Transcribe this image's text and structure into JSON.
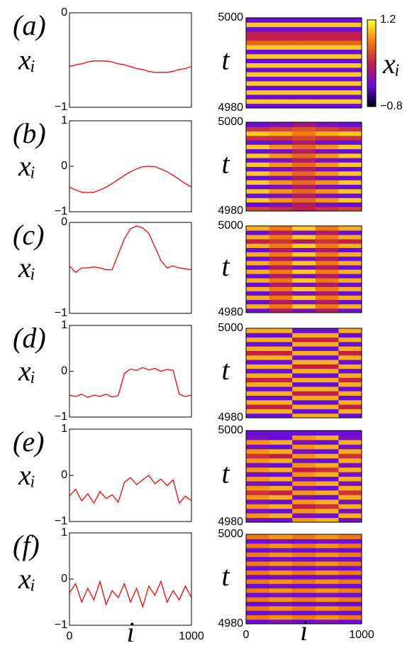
{
  "chart_data": [
    {
      "type": "line",
      "panel_label": "(a)",
      "ylabel": "xᵢ",
      "color": "#ff0000",
      "xlim": [
        0,
        1000
      ],
      "ylim": [
        -1,
        0
      ],
      "yticks": [
        {
          "value": -1,
          "label": "−1"
        },
        0
      ],
      "x": [
        0,
        50,
        100,
        150,
        200,
        250,
        300,
        350,
        400,
        450,
        500,
        550,
        600,
        650,
        700,
        750,
        800,
        850,
        900,
        950,
        1000
      ],
      "values": [
        -0.57,
        -0.55,
        -0.54,
        -0.52,
        -0.51,
        -0.51,
        -0.51,
        -0.52,
        -0.54,
        -0.55,
        -0.57,
        -0.59,
        -0.6,
        -0.62,
        -0.63,
        -0.63,
        -0.63,
        -0.62,
        -0.6,
        -0.59,
        -0.57
      ]
    },
    {
      "type": "line",
      "panel_label": "(b)",
      "ylabel": "xᵢ",
      "color": "#ff0000",
      "xlim": [
        0,
        1000
      ],
      "ylim": [
        -1,
        1
      ],
      "yticks": [
        {
          "value": -1,
          "label": "−1"
        },
        0,
        1
      ],
      "x": [
        0,
        50,
        100,
        150,
        200,
        250,
        300,
        350,
        400,
        450,
        500,
        550,
        600,
        650,
        700,
        750,
        800,
        850,
        900,
        950,
        1000
      ],
      "values": [
        -0.46,
        -0.52,
        -0.57,
        -0.58,
        -0.57,
        -0.52,
        -0.46,
        -0.38,
        -0.29,
        -0.2,
        -0.12,
        -0.06,
        -0.01,
        0,
        -0.01,
        -0.06,
        -0.12,
        -0.2,
        -0.29,
        -0.38,
        -0.46
      ]
    },
    {
      "type": "line",
      "panel_label": "(c)",
      "ylabel": "xᵢ",
      "color": "#ff0000",
      "xlim": [
        0,
        1000
      ],
      "ylim": [
        -1,
        0
      ],
      "yticks": [
        {
          "value": -1,
          "label": "−1"
        },
        0
      ],
      "x": [
        0,
        50,
        100,
        150,
        200,
        250,
        300,
        350,
        400,
        450,
        500,
        550,
        600,
        650,
        700,
        750,
        800,
        850,
        900,
        950,
        1000
      ],
      "values": [
        -0.48,
        -0.55,
        -0.5,
        -0.5,
        -0.49,
        -0.5,
        -0.52,
        -0.52,
        -0.35,
        -0.18,
        -0.07,
        -0.04,
        -0.06,
        -0.12,
        -0.27,
        -0.42,
        -0.5,
        -0.48,
        -0.5,
        -0.51,
        -0.52
      ]
    },
    {
      "type": "line",
      "panel_label": "(d)",
      "ylabel": "xᵢ",
      "color": "#ff0000",
      "xlim": [
        0,
        1000
      ],
      "ylim": [
        -1,
        1
      ],
      "yticks": [
        {
          "value": -1,
          "label": "−1"
        },
        0,
        1
      ],
      "x": [
        0,
        50,
        100,
        150,
        200,
        250,
        300,
        350,
        400,
        450,
        500,
        550,
        600,
        650,
        700,
        750,
        800,
        850,
        900,
        950,
        1000
      ],
      "values": [
        -0.52,
        -0.55,
        -0.5,
        -0.57,
        -0.52,
        -0.55,
        -0.5,
        -0.56,
        -0.53,
        -0.05,
        0.05,
        0.02,
        0.08,
        0.03,
        0.06,
        0,
        0.04,
        0.02,
        -0.5,
        -0.55,
        -0.52
      ]
    },
    {
      "type": "line",
      "panel_label": "(e)",
      "ylabel": "xᵢ",
      "color": "#ff0000",
      "xlim": [
        0,
        1000
      ],
      "ylim": [
        -1,
        1
      ],
      "yticks": [
        {
          "value": -1,
          "label": "−1"
        },
        0,
        1
      ],
      "x": [
        0,
        50,
        100,
        150,
        200,
        250,
        300,
        350,
        400,
        450,
        500,
        550,
        600,
        650,
        700,
        750,
        800,
        850,
        900,
        950,
        1000
      ],
      "values": [
        -0.45,
        -0.3,
        -0.55,
        -0.4,
        -0.6,
        -0.35,
        -0.5,
        -0.42,
        -0.58,
        -0.15,
        -0.05,
        -0.2,
        -0.1,
        0,
        -0.18,
        -0.08,
        -0.22,
        -0.1,
        -0.6,
        -0.45,
        -0.55
      ]
    },
    {
      "type": "line",
      "panel_label": "(f)",
      "ylabel": "xᵢ",
      "xlabel": "i",
      "color": "#ff0000",
      "xlim": [
        0,
        1000
      ],
      "xticks": [
        0,
        1000
      ],
      "ylim": [
        -1,
        1
      ],
      "yticks": [
        {
          "value": -1,
          "label": "−1"
        },
        0,
        1
      ],
      "x": [
        0,
        50,
        100,
        150,
        200,
        250,
        300,
        350,
        400,
        450,
        500,
        550,
        600,
        650,
        700,
        750,
        800,
        850,
        900,
        950,
        1000
      ],
      "values": [
        -0.3,
        -0.1,
        -0.5,
        -0.2,
        -0.45,
        -0.05,
        -0.55,
        -0.25,
        -0.4,
        -0.1,
        -0.5,
        -0.2,
        -0.6,
        -0.15,
        -0.35,
        -0.05,
        -0.5,
        -0.25,
        -0.45,
        -0.15,
        -0.4
      ]
    },
    {
      "type": "heatmap",
      "ylabel": "t",
      "xlim": [
        0,
        1000
      ],
      "ylim": [
        4980,
        5000
      ],
      "yticks": [
        4980,
        5000
      ],
      "zlim": [
        -0.8,
        1.2
      ],
      "z": [
        [
          -0.3,
          -0.3,
          -0.3,
          -0.3,
          -0.3
        ],
        [
          1,
          1,
          1,
          1,
          1
        ],
        [
          -0.3,
          -0.3,
          -0.3,
          -0.3,
          -0.3
        ],
        [
          1,
          1,
          1,
          1,
          1
        ],
        [
          -0.3,
          -0.3,
          -0.3,
          -0.3,
          -0.3
        ],
        [
          1,
          1,
          1,
          1,
          1
        ],
        [
          -0.3,
          -0.3,
          -0.3,
          -0.3,
          -0.3
        ],
        [
          1,
          1,
          1,
          1,
          1
        ],
        [
          -0.3,
          -0.3,
          -0.3,
          -0.3,
          -0.3
        ],
        [
          1,
          1,
          1,
          1,
          1
        ],
        [
          -0.3,
          -0.3,
          -0.3,
          -0.3,
          -0.3
        ],
        [
          1,
          1,
          1,
          1,
          1
        ],
        [
          -0.3,
          -0.3,
          -0.3,
          -0.3,
          -0.3
        ],
        [
          1,
          1,
          1,
          1,
          1
        ],
        [
          0.6,
          0.6,
          0.6,
          0.6,
          0.6
        ],
        [
          0.2,
          0.2,
          0.2,
          0.2,
          0.2
        ],
        [
          0.2,
          0.2,
          0.2,
          0.2,
          0.2
        ],
        [
          -0.3,
          -0.3,
          -0.3,
          -0.3,
          -0.3
        ],
        [
          1,
          1,
          1,
          1,
          1
        ],
        [
          -0.3,
          -0.3,
          -0.3,
          -0.3,
          -0.3
        ]
      ]
    },
    {
      "type": "heatmap",
      "ylabel": "t",
      "xlim": [
        0,
        1000
      ],
      "ylim": [
        4980,
        5000
      ],
      "yticks": [
        4980,
        5000
      ],
      "zlim": [
        -0.8,
        1.2
      ],
      "z": [
        [
          0.4,
          0.3,
          0.2,
          0.3,
          0.4
        ],
        [
          -0.3,
          -0.2,
          0.1,
          -0.2,
          -0.3
        ],
        [
          1,
          0.8,
          0.6,
          0.8,
          1
        ],
        [
          -0.3,
          -0.2,
          0.1,
          -0.2,
          -0.3
        ],
        [
          1,
          0.8,
          0.6,
          0.8,
          1
        ],
        [
          -0.3,
          -0.2,
          0.1,
          -0.2,
          -0.3
        ],
        [
          1,
          0.8,
          0.6,
          0.8,
          1
        ],
        [
          -0.3,
          -0.2,
          0.1,
          -0.2,
          -0.3
        ],
        [
          1,
          0.8,
          0.6,
          0.8,
          1
        ],
        [
          -0.3,
          -0.2,
          0.1,
          -0.2,
          -0.3
        ],
        [
          1,
          0.8,
          0.6,
          0.8,
          1
        ],
        [
          -0.3,
          -0.2,
          0.1,
          -0.2,
          -0.3
        ],
        [
          1,
          0.8,
          0.6,
          0.8,
          1
        ],
        [
          -0.3,
          -0.2,
          0.1,
          -0.2,
          -0.3
        ],
        [
          1,
          0.8,
          0.6,
          0.8,
          1
        ],
        [
          -0.3,
          -0.2,
          0.1,
          -0.2,
          -0.3
        ],
        [
          0.3,
          0.3,
          0.4,
          0.3,
          0.3
        ],
        [
          1,
          0.9,
          0.7,
          0.9,
          1
        ],
        [
          0.3,
          0.4,
          0.5,
          0.4,
          0.3
        ],
        [
          -0.3,
          -0.2,
          0,
          -0.2,
          -0.3
        ]
      ]
    },
    {
      "type": "heatmap",
      "ylabel": "t",
      "xlim": [
        0,
        1000
      ],
      "ylim": [
        4980,
        5000
      ],
      "yticks": [
        4980,
        5000
      ],
      "zlim": [
        -0.8,
        1.2
      ],
      "z": [
        [
          -0.3,
          0.1,
          -0.2,
          0.1,
          -0.3
        ],
        [
          0.9,
          0.7,
          1,
          0.7,
          0.9
        ],
        [
          -0.3,
          0.1,
          -0.2,
          0.1,
          -0.3
        ],
        [
          0.9,
          0.7,
          1,
          0.7,
          0.9
        ],
        [
          -0.3,
          0.1,
          -0.2,
          0.1,
          -0.3
        ],
        [
          0.9,
          0.7,
          1,
          0.7,
          0.9
        ],
        [
          -0.3,
          0.1,
          -0.2,
          0.1,
          -0.3
        ],
        [
          0.9,
          0.7,
          1,
          0.7,
          0.9
        ],
        [
          -0.3,
          0.1,
          -0.2,
          0.1,
          -0.3
        ],
        [
          0.9,
          0.7,
          1,
          0.7,
          0.9
        ],
        [
          -0.3,
          0.1,
          -0.2,
          0.1,
          -0.3
        ],
        [
          0.9,
          0.7,
          1,
          0.7,
          0.9
        ],
        [
          -0.3,
          0.1,
          -0.2,
          0.1,
          -0.3
        ],
        [
          0.9,
          0.7,
          1,
          0.7,
          0.9
        ],
        [
          -0.3,
          0.1,
          -0.2,
          0.1,
          -0.3
        ],
        [
          0.9,
          0.7,
          1,
          0.7,
          0.9
        ],
        [
          0.2,
          0.3,
          0.1,
          0.3,
          0.2
        ],
        [
          0.9,
          0.7,
          1,
          0.7,
          0.9
        ],
        [
          -0.3,
          0.1,
          -0.2,
          0.1,
          -0.3
        ],
        [
          0.9,
          0.7,
          1,
          0.7,
          0.9
        ]
      ]
    },
    {
      "type": "heatmap",
      "ylabel": "t",
      "xlim": [
        0,
        1000
      ],
      "ylim": [
        4980,
        5000
      ],
      "yticks": [
        4980,
        5000
      ],
      "zlim": [
        -0.8,
        1.2
      ],
      "z": [
        [
          -0.3,
          -0.3,
          0.9,
          0.9,
          -0.3
        ],
        [
          0.9,
          0.9,
          -0.3,
          -0.3,
          0.9
        ],
        [
          0.2,
          0.2,
          0.9,
          0.9,
          0.2
        ],
        [
          0.9,
          0.9,
          -0.3,
          -0.3,
          0.9
        ],
        [
          -0.3,
          -0.3,
          0.9,
          0.9,
          -0.3
        ],
        [
          0.9,
          0.9,
          0.2,
          0.2,
          0.9
        ],
        [
          -0.3,
          -0.3,
          0.9,
          0.9,
          -0.3
        ],
        [
          0.9,
          0.9,
          -0.3,
          -0.3,
          0.9
        ],
        [
          0.2,
          0.2,
          0.9,
          0.9,
          0.2
        ],
        [
          0.9,
          0.9,
          -0.3,
          -0.3,
          0.9
        ],
        [
          -0.3,
          -0.3,
          0.9,
          0.9,
          -0.3
        ],
        [
          0.9,
          0.9,
          0.2,
          0.2,
          0.9
        ],
        [
          -0.3,
          -0.3,
          0.9,
          0.9,
          -0.3
        ],
        [
          0.9,
          0.9,
          -0.3,
          -0.3,
          0.9
        ],
        [
          0.2,
          0.2,
          0.9,
          0.9,
          0.2
        ],
        [
          0.9,
          0.9,
          -0.3,
          -0.3,
          0.9
        ],
        [
          -0.3,
          -0.3,
          0.9,
          0.9,
          -0.3
        ],
        [
          0.9,
          0.9,
          0.2,
          0.2,
          0.9
        ],
        [
          -0.3,
          -0.3,
          0.9,
          0.9,
          -0.3
        ],
        [
          0.9,
          0.9,
          -0.3,
          -0.3,
          0.9
        ]
      ]
    },
    {
      "type": "heatmap",
      "ylabel": "t",
      "xlim": [
        0,
        1000
      ],
      "ylim": [
        4980,
        5000
      ],
      "yticks": [
        4980,
        5000
      ],
      "zlim": [
        -0.8,
        1.2
      ],
      "z": [
        [
          -0.2,
          -0.3,
          0.8,
          0.9,
          -0.2
        ],
        [
          0.8,
          0.9,
          -0.2,
          -0.3,
          0.9
        ],
        [
          -0.2,
          -0.3,
          0.8,
          0.9,
          -0.2
        ],
        [
          0.8,
          0.9,
          0.2,
          0.3,
          0.9
        ],
        [
          -0.2,
          -0.3,
          0.8,
          0.9,
          -0.2
        ],
        [
          0.8,
          0.9,
          -0.2,
          -0.3,
          0.9
        ],
        [
          0.3,
          0.2,
          0.8,
          0.9,
          0.3
        ],
        [
          0.8,
          0.9,
          -0.2,
          -0.3,
          0.9
        ],
        [
          -0.2,
          -0.3,
          0.8,
          0.9,
          -0.2
        ],
        [
          0.8,
          0.9,
          -0.2,
          -0.3,
          0.9
        ],
        [
          -0.2,
          -0.3,
          0.8,
          0.9,
          -0.2
        ],
        [
          0.8,
          0.9,
          0.2,
          0.3,
          0.9
        ],
        [
          -0.2,
          -0.3,
          0.8,
          0.9,
          -0.2
        ],
        [
          0.8,
          0.9,
          -0.2,
          -0.3,
          0.9
        ],
        [
          0.3,
          0.2,
          0.8,
          0.9,
          0.3
        ],
        [
          0.8,
          0.9,
          -0.2,
          -0.3,
          0.9
        ],
        [
          -0.2,
          -0.3,
          0.8,
          0.9,
          -0.2
        ],
        [
          0.8,
          0.9,
          -0.2,
          -0.3,
          0.9
        ],
        [
          -0.2,
          -0.3,
          0.8,
          0.9,
          -0.2
        ],
        [
          -0.3,
          -0.3,
          -0.3,
          -0.3,
          -0.3
        ]
      ]
    },
    {
      "type": "heatmap",
      "ylabel": "t",
      "xlabel": "i",
      "xlim": [
        0,
        1000
      ],
      "xticks": [
        0,
        1000
      ],
      "ylim": [
        4980,
        5000
      ],
      "yticks": [
        4980,
        5000
      ],
      "zlim": [
        -0.8,
        1.2
      ],
      "z": [
        [
          -0.3,
          -0.2,
          -0.3,
          -0.2,
          -0.3
        ],
        [
          0.7,
          0.8,
          0.7,
          0.8,
          0.7
        ],
        [
          -0.3,
          -0.2,
          -0.3,
          -0.2,
          -0.3
        ],
        [
          0.7,
          0.8,
          0.7,
          0.8,
          0.7
        ],
        [
          -0.3,
          -0.2,
          -0.3,
          -0.2,
          -0.3
        ],
        [
          0.7,
          0.8,
          0.7,
          0.8,
          0.7
        ],
        [
          -0.3,
          -0.2,
          -0.3,
          -0.2,
          -0.3
        ],
        [
          0.7,
          0.8,
          0.7,
          0.8,
          0.7
        ],
        [
          -0.3,
          -0.2,
          -0.3,
          -0.2,
          -0.3
        ],
        [
          0.7,
          0.8,
          0.7,
          0.8,
          0.7
        ],
        [
          -0.3,
          -0.2,
          -0.3,
          -0.2,
          -0.3
        ],
        [
          0.7,
          0.8,
          0.7,
          0.8,
          0.7
        ],
        [
          -0.3,
          -0.2,
          -0.3,
          -0.2,
          -0.3
        ],
        [
          0.7,
          0.8,
          0.7,
          0.8,
          0.7
        ],
        [
          -0.3,
          -0.2,
          -0.3,
          -0.2,
          -0.3
        ],
        [
          0.7,
          0.8,
          0.7,
          0.8,
          0.7
        ],
        [
          -0.3,
          -0.2,
          -0.3,
          -0.2,
          -0.3
        ],
        [
          0.7,
          0.8,
          0.7,
          0.8,
          0.7
        ],
        [
          -0.3,
          -0.2,
          -0.3,
          -0.2,
          -0.3
        ],
        [
          0.7,
          0.8,
          0.7,
          0.8,
          0.7
        ]
      ]
    },
    {
      "type": "colorbar",
      "label": "xᵢ",
      "zlim": [
        -0.8,
        1.2
      ],
      "zticks": [
        {
          "value": -0.8,
          "label": "−0.8"
        },
        1.2
      ]
    }
  ]
}
